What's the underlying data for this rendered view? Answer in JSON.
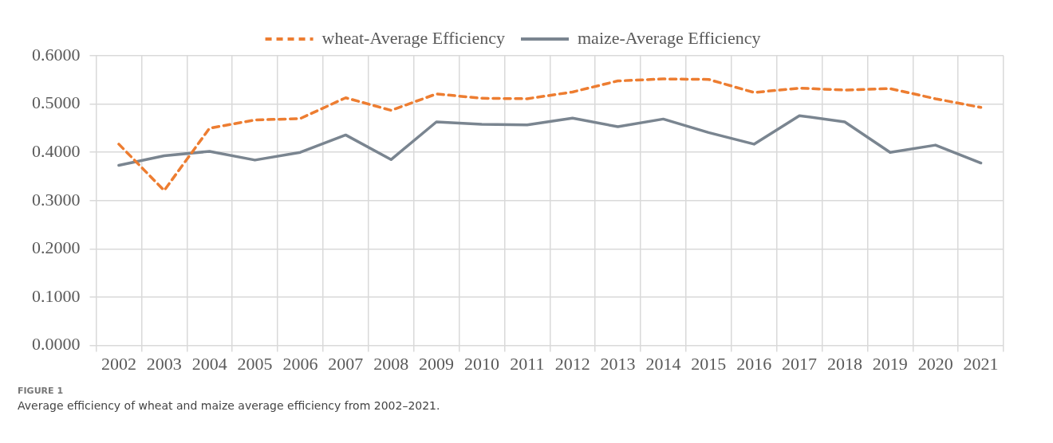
{
  "chart_data": {
    "type": "line",
    "categories": [
      "2002",
      "2003",
      "2004",
      "2005",
      "2006",
      "2007",
      "2008",
      "2009",
      "2010",
      "2011",
      "2012",
      "2013",
      "2014",
      "2015",
      "2016",
      "2017",
      "2018",
      "2019",
      "2020",
      "2021"
    ],
    "series": [
      {
        "name": "wheat-Average Efficiency",
        "color": "#ed7d31",
        "line_style": "dashed",
        "values": [
          0.417,
          0.321,
          0.45,
          0.467,
          0.47,
          0.513,
          0.487,
          0.521,
          0.512,
          0.511,
          0.525,
          0.548,
          0.552,
          0.551,
          0.524,
          0.533,
          0.529,
          0.532,
          0.511,
          0.493
        ]
      },
      {
        "name": "maize-Average Efficiency",
        "color": "#7a8590",
        "line_style": "solid",
        "values": [
          0.373,
          0.393,
          0.402,
          0.384,
          0.4,
          0.436,
          0.385,
          0.463,
          0.458,
          0.457,
          0.471,
          0.453,
          0.469,
          0.441,
          0.417,
          0.476,
          0.463,
          0.4,
          0.415,
          0.378
        ]
      }
    ],
    "ylim": [
      0,
      0.6
    ],
    "yticks": [
      {
        "value": 0,
        "label": "0.0000"
      },
      {
        "value": 0.1,
        "label": "0.1000"
      },
      {
        "value": 0.2,
        "label": "0.2000"
      },
      {
        "value": 0.3,
        "label": "0.3000"
      },
      {
        "value": 0.4,
        "label": "0.4000"
      },
      {
        "value": 0.5,
        "label": "0.5000"
      },
      {
        "value": 0.6,
        "label": "0.6000"
      }
    ],
    "grid": true,
    "legend": "top",
    "marker": "none",
    "annotations": [
      "FIGURE 1",
      "Average efficiency of wheat and maize average efficiency from 2002–2021."
    ]
  }
}
